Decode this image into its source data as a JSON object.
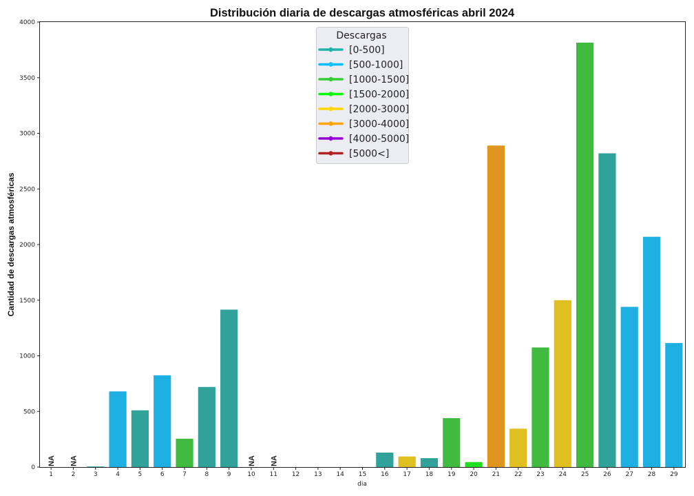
{
  "chart_data": {
    "type": "bar",
    "title": "Distribución diaria de descargas atmosféricas abril 2024",
    "xlabel": "dia",
    "ylabel": "Cantidad de descargas atmosféricas",
    "ylim": [
      0,
      4000
    ],
    "yticks": [
      0,
      500,
      1000,
      1500,
      2000,
      2500,
      3000,
      3500,
      4000
    ],
    "categories": [
      "1",
      "2",
      "3",
      "4",
      "5",
      "6",
      "7",
      "8",
      "9",
      "10",
      "11",
      "12",
      "13",
      "14",
      "15",
      "16",
      "17",
      "18",
      "19",
      "20",
      "21",
      "22",
      "23",
      "24",
      "25",
      "26",
      "27",
      "28",
      "29"
    ],
    "values": [
      null,
      null,
      5,
      680,
      510,
      825,
      255,
      720,
      1415,
      null,
      null,
      0,
      0,
      0,
      0,
      130,
      95,
      80,
      440,
      45,
      2890,
      345,
      1075,
      1500,
      3815,
      2820,
      1440,
      2070,
      1115
    ],
    "bar_colors": [
      "",
      "",
      "#30a29a",
      "#1fb0e3",
      "#30a29a",
      "#1fb0e3",
      "#40bb40",
      "#30a29a",
      "#30a29a",
      "",
      "",
      "",
      "",
      "",
      "",
      "#30a29a",
      "#e0c020",
      "#30a29a",
      "#40bb40",
      "#22dd22",
      "#e0961e",
      "#e0c020",
      "#40bb40",
      "#e0c020",
      "#40bb40",
      "#30a29a",
      "#1fb0e3",
      "#1fb0e3",
      "#1fb0e3"
    ],
    "na_label": "NA",
    "na_days": [
      "1",
      "2",
      "10",
      "11"
    ],
    "grid": false,
    "legend": {
      "title": "Descargas",
      "placement": "top-center",
      "entries": [
        {
          "label": "[0-500]",
          "color": "#20b2aa"
        },
        {
          "label": "[500-1000]",
          "color": "#00bfff"
        },
        {
          "label": "[1000-1500]",
          "color": "#32cd32"
        },
        {
          "label": "[1500-2000]",
          "color": "#00ff00"
        },
        {
          "label": "[2000-3000]",
          "color": "#ffd700"
        },
        {
          "label": "[3000-4000]",
          "color": "#ffa500"
        },
        {
          "label": "[4000-5000]",
          "color": "#9400d3"
        },
        {
          "label": "[5000<]",
          "color": "#b22222"
        }
      ]
    }
  }
}
